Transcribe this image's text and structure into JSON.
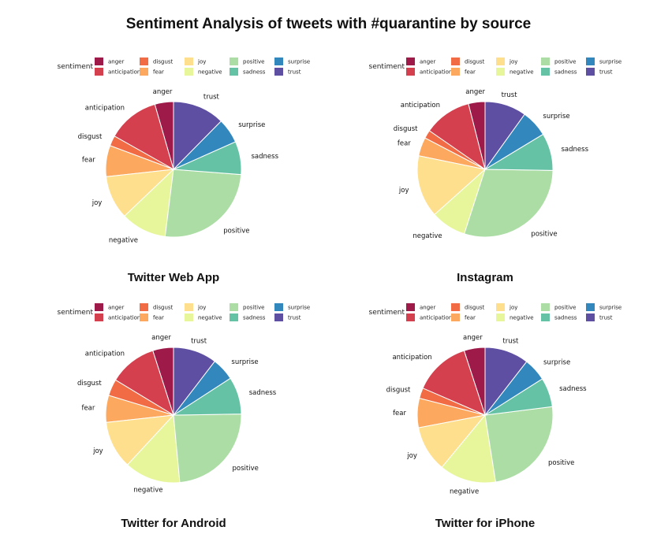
{
  "title": "Sentiment Analysis of tweets with #quarantine by source",
  "legend": {
    "title": "sentiment",
    "colors": {
      "anger": "#9e1a49",
      "anticipation": "#d5404e",
      "disgust": "#f16c44",
      "fear": "#fca85e",
      "joy": "#fedf8d",
      "negative": "#e7f59b",
      "positive": "#abdda4",
      "sadness": "#66c2a5",
      "surprise": "#3287bd",
      "trust": "#5f4fa2"
    }
  },
  "chart_data": [
    {
      "type": "pie",
      "title": "Twitter Web App",
      "categories": [
        "anger",
        "anticipation",
        "disgust",
        "fear",
        "joy",
        "negative",
        "positive",
        "sadness",
        "surprise",
        "trust"
      ],
      "values": [
        4.5,
        12.5,
        2.5,
        7.5,
        10.5,
        11.0,
        26.0,
        8.0,
        6.0,
        12.5
      ]
    },
    {
      "type": "pie",
      "title": "Instagram",
      "categories": [
        "anger",
        "anticipation",
        "disgust",
        "fear",
        "joy",
        "negative",
        "positive",
        "sadness",
        "surprise",
        "trust"
      ],
      "values": [
        4.0,
        11.5,
        2.0,
        4.5,
        15.0,
        8.5,
        30.0,
        9.0,
        6.5,
        10.0
      ]
    },
    {
      "type": "pie",
      "title": "Twitter for Android",
      "categories": [
        "anger",
        "anticipation",
        "disgust",
        "fear",
        "joy",
        "negative",
        "positive",
        "sadness",
        "surprise",
        "trust"
      ],
      "values": [
        5.0,
        11.5,
        4.0,
        6.5,
        11.5,
        13.5,
        24.0,
        9.0,
        5.5,
        10.5
      ]
    },
    {
      "type": "pie",
      "title": "Twitter for iPhone",
      "categories": [
        "anger",
        "anticipation",
        "disgust",
        "fear",
        "joy",
        "negative",
        "positive",
        "sadness",
        "surprise",
        "trust"
      ],
      "values": [
        5.0,
        13.5,
        2.5,
        7.0,
        11.0,
        13.5,
        24.5,
        7.0,
        5.5,
        10.5
      ]
    }
  ]
}
